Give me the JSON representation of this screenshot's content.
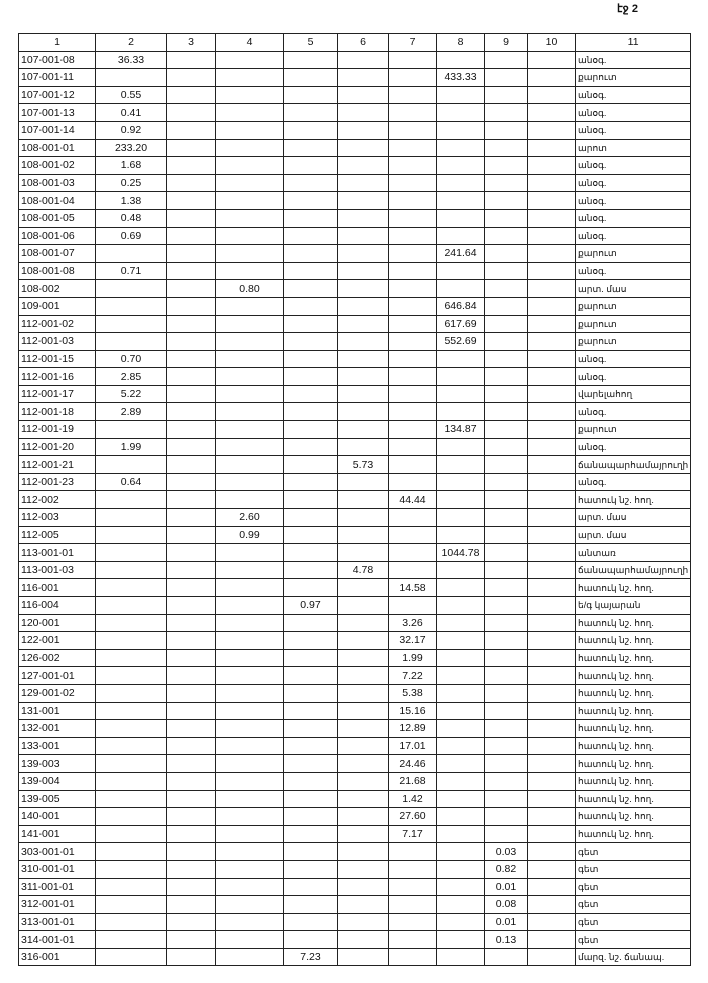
{
  "page_label": "էջ 2",
  "table": {
    "headers": [
      "1",
      "2",
      "3",
      "4",
      "5",
      "6",
      "7",
      "8",
      "9",
      "10",
      "11"
    ],
    "rows": [
      [
        "107-001-08",
        "36.33",
        "",
        "",
        "",
        "",
        "",
        "",
        "",
        "",
        "անօգ."
      ],
      [
        "107-001-11",
        "",
        "",
        "",
        "",
        "",
        "",
        "433.33",
        "",
        "",
        "քարուտ"
      ],
      [
        "107-001-12",
        "0.55",
        "",
        "",
        "",
        "",
        "",
        "",
        "",
        "",
        "անօգ."
      ],
      [
        "107-001-13",
        "0.41",
        "",
        "",
        "",
        "",
        "",
        "",
        "",
        "",
        "անօգ."
      ],
      [
        "107-001-14",
        "0.92",
        "",
        "",
        "",
        "",
        "",
        "",
        "",
        "",
        "անօգ."
      ],
      [
        "108-001-01",
        "233.20",
        "",
        "",
        "",
        "",
        "",
        "",
        "",
        "",
        "արոտ"
      ],
      [
        "108-001-02",
        "1.68",
        "",
        "",
        "",
        "",
        "",
        "",
        "",
        "",
        "անօգ."
      ],
      [
        "108-001-03",
        "0.25",
        "",
        "",
        "",
        "",
        "",
        "",
        "",
        "",
        "անօգ."
      ],
      [
        "108-001-04",
        "1.38",
        "",
        "",
        "",
        "",
        "",
        "",
        "",
        "",
        "անօգ."
      ],
      [
        "108-001-05",
        "0.48",
        "",
        "",
        "",
        "",
        "",
        "",
        "",
        "",
        "անօգ."
      ],
      [
        "108-001-06",
        "0.69",
        "",
        "",
        "",
        "",
        "",
        "",
        "",
        "",
        "անօգ."
      ],
      [
        "108-001-07",
        "",
        "",
        "",
        "",
        "",
        "",
        "241.64",
        "",
        "",
        "քարուտ"
      ],
      [
        "108-001-08",
        "0.71",
        "",
        "",
        "",
        "",
        "",
        "",
        "",
        "",
        "անօգ."
      ],
      [
        "108-002",
        "",
        "",
        "0.80",
        "",
        "",
        "",
        "",
        "",
        "",
        "արտ. մաս"
      ],
      [
        "109-001",
        "",
        "",
        "",
        "",
        "",
        "",
        "646.84",
        "",
        "",
        "քարուտ"
      ],
      [
        "112-001-02",
        "",
        "",
        "",
        "",
        "",
        "",
        "617.69",
        "",
        "",
        "քարուտ"
      ],
      [
        "112-001-03",
        "",
        "",
        "",
        "",
        "",
        "",
        "552.69",
        "",
        "",
        "քարուտ"
      ],
      [
        "112-001-15",
        "0.70",
        "",
        "",
        "",
        "",
        "",
        "",
        "",
        "",
        "անօգ."
      ],
      [
        "112-001-16",
        "2.85",
        "",
        "",
        "",
        "",
        "",
        "",
        "",
        "",
        "անօգ."
      ],
      [
        "112-001-17",
        "5.22",
        "",
        "",
        "",
        "",
        "",
        "",
        "",
        "",
        "վարելահող"
      ],
      [
        "112-001-18",
        "2.89",
        "",
        "",
        "",
        "",
        "",
        "",
        "",
        "",
        "անօգ."
      ],
      [
        "112-001-19",
        "",
        "",
        "",
        "",
        "",
        "",
        "134.87",
        "",
        "",
        "քարուտ"
      ],
      [
        "112-001-20",
        "1.99",
        "",
        "",
        "",
        "",
        "",
        "",
        "",
        "",
        "անօգ."
      ],
      [
        "112-001-21",
        "",
        "",
        "",
        "",
        "5.73",
        "",
        "",
        "",
        "",
        "ճանապարհամայրուղի"
      ],
      [
        "112-001-23",
        "0.64",
        "",
        "",
        "",
        "",
        "",
        "",
        "",
        "",
        "անօգ."
      ],
      [
        "112-002",
        "",
        "",
        "",
        "",
        "",
        "44.44",
        "",
        "",
        "",
        "հատուկ նշ. հող."
      ],
      [
        "112-003",
        "",
        "",
        "2.60",
        "",
        "",
        "",
        "",
        "",
        "",
        "արտ. մաս"
      ],
      [
        "112-005",
        "",
        "",
        "0.99",
        "",
        "",
        "",
        "",
        "",
        "",
        "արտ. մաս"
      ],
      [
        "113-001-01",
        "",
        "",
        "",
        "",
        "",
        "",
        "1044.78",
        "",
        "",
        "անտառ"
      ],
      [
        "113-001-03",
        "",
        "",
        "",
        "",
        "4.78",
        "",
        "",
        "",
        "",
        "ճանապարհամայրուղի"
      ],
      [
        "116-001",
        "",
        "",
        "",
        "",
        "",
        "14.58",
        "",
        "",
        "",
        "հատուկ նշ. հող."
      ],
      [
        "116-004",
        "",
        "",
        "",
        "0.97",
        "",
        "",
        "",
        "",
        "",
        "ե/գ կայարան"
      ],
      [
        "120-001",
        "",
        "",
        "",
        "",
        "",
        "3.26",
        "",
        "",
        "",
        "հատուկ նշ. հող."
      ],
      [
        "122-001",
        "",
        "",
        "",
        "",
        "",
        "32.17",
        "",
        "",
        "",
        "հատուկ նշ. հող."
      ],
      [
        "126-002",
        "",
        "",
        "",
        "",
        "",
        "1.99",
        "",
        "",
        "",
        "հատուկ նշ. հող."
      ],
      [
        "127-001-01",
        "",
        "",
        "",
        "",
        "",
        "7.22",
        "",
        "",
        "",
        "հատուկ նշ. հող."
      ],
      [
        "129-001-02",
        "",
        "",
        "",
        "",
        "",
        "5.38",
        "",
        "",
        "",
        "հատուկ նշ. հող."
      ],
      [
        "131-001",
        "",
        "",
        "",
        "",
        "",
        "15.16",
        "",
        "",
        "",
        "հատուկ նշ. հող."
      ],
      [
        "132-001",
        "",
        "",
        "",
        "",
        "",
        "12.89",
        "",
        "",
        "",
        "հատուկ նշ. հող."
      ],
      [
        "133-001",
        "",
        "",
        "",
        "",
        "",
        "17.01",
        "",
        "",
        "",
        "հատուկ նշ. հող."
      ],
      [
        "139-003",
        "",
        "",
        "",
        "",
        "",
        "24.46",
        "",
        "",
        "",
        "հատուկ նշ. հող."
      ],
      [
        "139-004",
        "",
        "",
        "",
        "",
        "",
        "21.68",
        "",
        "",
        "",
        "հատուկ նշ. հող."
      ],
      [
        "139-005",
        "",
        "",
        "",
        "",
        "",
        "1.42",
        "",
        "",
        "",
        "հատուկ նշ. հող."
      ],
      [
        "140-001",
        "",
        "",
        "",
        "",
        "",
        "27.60",
        "",
        "",
        "",
        "հատուկ նշ. հող."
      ],
      [
        "141-001",
        "",
        "",
        "",
        "",
        "",
        "7.17",
        "",
        "",
        "",
        "հատուկ նշ. հող."
      ],
      [
        "303-001-01",
        "",
        "",
        "",
        "",
        "",
        "",
        "",
        "0.03",
        "",
        "գետ"
      ],
      [
        "310-001-01",
        "",
        "",
        "",
        "",
        "",
        "",
        "",
        "0.82",
        "",
        "գետ"
      ],
      [
        "311-001-01",
        "",
        "",
        "",
        "",
        "",
        "",
        "",
        "0.01",
        "",
        "գետ"
      ],
      [
        "312-001-01",
        "",
        "",
        "",
        "",
        "",
        "",
        "",
        "0.08",
        "",
        "գետ"
      ],
      [
        "313-001-01",
        "",
        "",
        "",
        "",
        "",
        "",
        "",
        "0.01",
        "",
        "գետ"
      ],
      [
        "314-001-01",
        "",
        "",
        "",
        "",
        "",
        "",
        "",
        "0.13",
        "",
        "գետ"
      ],
      [
        "316-001",
        "",
        "",
        "",
        "7.23",
        "",
        "",
        "",
        "",
        "",
        "մարզ. նշ. ճանապ."
      ]
    ]
  }
}
